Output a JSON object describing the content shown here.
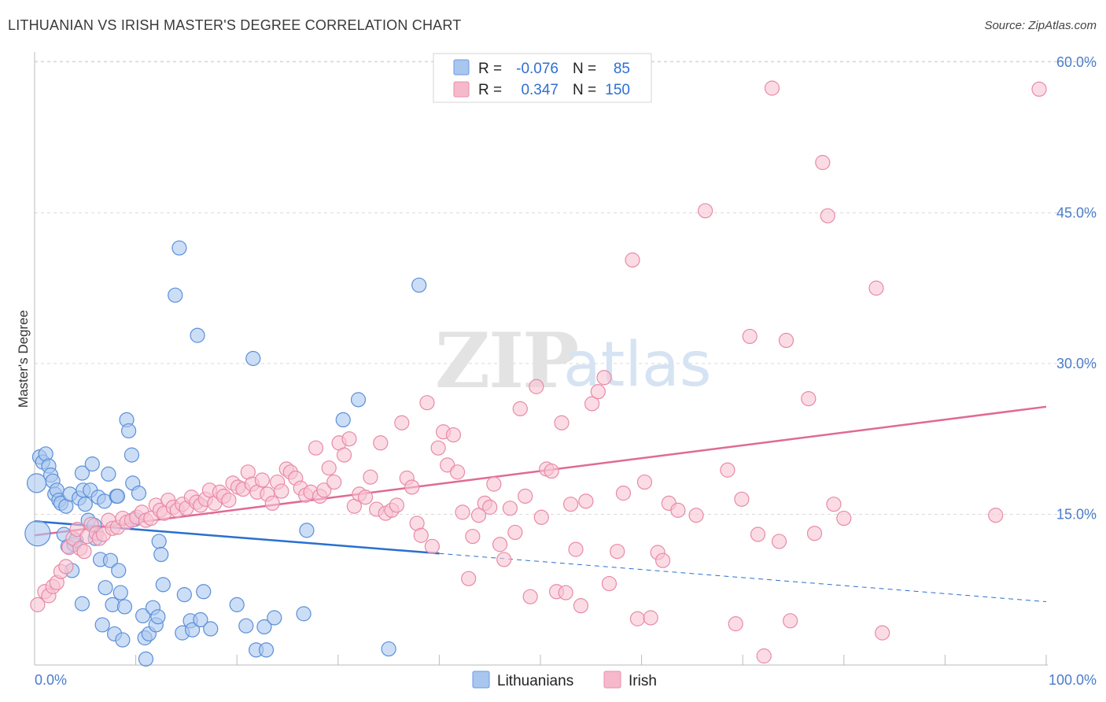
{
  "header": {
    "title": "LITHUANIAN VS IRISH MASTER'S DEGREE CORRELATION CHART",
    "source": "Source: ZipAtlas.com"
  },
  "watermark": {
    "zip": "ZIP",
    "atlas": "atlas"
  },
  "legend": {
    "rows": [
      {
        "r_label": "R =",
        "r_value": "-0.076",
        "n_label": "N =",
        "n_value": "85",
        "color": "#a8c6ee"
      },
      {
        "r_label": "R =",
        "r_value": "0.347",
        "n_label": "N =",
        "n_value": "150",
        "color": "#f6b8cb"
      }
    ]
  },
  "chart_data": {
    "type": "scatter",
    "title": "LITHUANIAN VS IRISH MASTER'S DEGREE CORRELATION CHART",
    "xlabel": "",
    "ylabel": "Master's Degree",
    "xlim": [
      0,
      100
    ],
    "ylim": [
      0,
      63
    ],
    "x_tick_labels": [
      "0.0%",
      "100.0%"
    ],
    "y_ticks": [
      15,
      30,
      45,
      60
    ],
    "y_tick_labels": [
      "15.0%",
      "30.0%",
      "45.0%",
      "60.0%"
    ],
    "grid": true,
    "legend_position": "bottom-center",
    "series": [
      {
        "name": "Lithuanians",
        "color": "#5b8fd8",
        "fill": "#aac8f0",
        "trend": {
          "x": [
            0,
            40
          ],
          "y": [
            14.3,
            11.1
          ],
          "dashed_to": [
            100,
            6.3
          ],
          "color": "#2a6fcf"
        },
        "points": [
          [
            0.2,
            18.1
          ],
          [
            0.3,
            13.1
          ],
          [
            0.5,
            20.7
          ],
          [
            0.8,
            20.2
          ],
          [
            1.1,
            21.0
          ],
          [
            1.4,
            19.8
          ],
          [
            1.6,
            18.9
          ],
          [
            1.8,
            18.3
          ],
          [
            2.0,
            17.0
          ],
          [
            2.2,
            17.4
          ],
          [
            2.4,
            16.4
          ],
          [
            2.6,
            16.1
          ],
          [
            2.9,
            13.0
          ],
          [
            3.1,
            15.8
          ],
          [
            3.3,
            11.8
          ],
          [
            3.5,
            17.0
          ],
          [
            3.7,
            9.4
          ],
          [
            3.9,
            12.0
          ],
          [
            4.1,
            12.4
          ],
          [
            4.4,
            16.6
          ],
          [
            4.7,
            19.1
          ],
          [
            4.8,
            17.4
          ],
          [
            4.7,
            6.1
          ],
          [
            5.0,
            16.0
          ],
          [
            5.3,
            14.4
          ],
          [
            5.5,
            17.4
          ],
          [
            5.7,
            20.0
          ],
          [
            5.9,
            13.9
          ],
          [
            6.0,
            12.6
          ],
          [
            6.3,
            16.7
          ],
          [
            6.5,
            10.5
          ],
          [
            6.7,
            4.0
          ],
          [
            6.9,
            16.3
          ],
          [
            7.0,
            7.7
          ],
          [
            7.3,
            19.0
          ],
          [
            7.5,
            10.4
          ],
          [
            7.7,
            6.0
          ],
          [
            7.9,
            3.1
          ],
          [
            8.1,
            16.8
          ],
          [
            8.2,
            16.8
          ],
          [
            8.3,
            9.4
          ],
          [
            8.5,
            7.2
          ],
          [
            8.7,
            2.5
          ],
          [
            8.9,
            5.8
          ],
          [
            9.1,
            24.4
          ],
          [
            9.3,
            23.3
          ],
          [
            9.6,
            20.9
          ],
          [
            9.7,
            18.1
          ],
          [
            9.9,
            14.5
          ],
          [
            10.3,
            17.1
          ],
          [
            10.7,
            4.9
          ],
          [
            10.9,
            2.7
          ],
          [
            11.0,
            0.6
          ],
          [
            11.3,
            3.1
          ],
          [
            11.7,
            5.7
          ],
          [
            12.0,
            4.0
          ],
          [
            12.2,
            4.8
          ],
          [
            12.3,
            12.3
          ],
          [
            12.5,
            11.0
          ],
          [
            12.7,
            8.0
          ],
          [
            13.9,
            36.8
          ],
          [
            14.3,
            41.5
          ],
          [
            14.6,
            3.2
          ],
          [
            14.8,
            7.0
          ],
          [
            15.4,
            4.4
          ],
          [
            15.6,
            3.5
          ],
          [
            16.1,
            32.8
          ],
          [
            16.4,
            4.5
          ],
          [
            16.7,
            7.3
          ],
          [
            17.4,
            3.6
          ],
          [
            20.0,
            6.0
          ],
          [
            20.9,
            3.9
          ],
          [
            21.6,
            30.5
          ],
          [
            21.9,
            1.5
          ],
          [
            22.7,
            3.8
          ],
          [
            22.9,
            1.5
          ],
          [
            23.7,
            4.7
          ],
          [
            26.6,
            5.1
          ],
          [
            26.9,
            13.4
          ],
          [
            30.5,
            24.4
          ],
          [
            32.0,
            26.4
          ],
          [
            35.0,
            1.6
          ],
          [
            38.0,
            37.8
          ]
        ]
      },
      {
        "name": "Irish",
        "color": "#e88aa8",
        "fill": "#f8c4d4",
        "trend": {
          "x": [
            0,
            100
          ],
          "y": [
            12.9,
            25.7
          ],
          "color": "#e06a96"
        },
        "points": [
          [
            0.3,
            6.0
          ],
          [
            1.0,
            7.3
          ],
          [
            1.4,
            6.9
          ],
          [
            1.8,
            7.8
          ],
          [
            2.2,
            8.2
          ],
          [
            2.6,
            9.3
          ],
          [
            3.1,
            9.8
          ],
          [
            3.4,
            11.7
          ],
          [
            3.8,
            12.6
          ],
          [
            4.2,
            13.5
          ],
          [
            4.5,
            11.6
          ],
          [
            4.9,
            11.3
          ],
          [
            5.2,
            12.8
          ],
          [
            5.6,
            14.0
          ],
          [
            6.1,
            13.1
          ],
          [
            6.4,
            12.6
          ],
          [
            6.8,
            13.0
          ],
          [
            7.3,
            14.4
          ],
          [
            7.7,
            13.6
          ],
          [
            8.2,
            13.7
          ],
          [
            8.7,
            14.6
          ],
          [
            9.1,
            14.2
          ],
          [
            9.6,
            14.4
          ],
          [
            10.1,
            14.7
          ],
          [
            10.6,
            15.2
          ],
          [
            11.0,
            14.4
          ],
          [
            11.5,
            14.6
          ],
          [
            12.0,
            15.9
          ],
          [
            12.4,
            15.4
          ],
          [
            12.8,
            15.1
          ],
          [
            13.2,
            16.4
          ],
          [
            13.7,
            15.7
          ],
          [
            14.1,
            15.4
          ],
          [
            14.6,
            16.0
          ],
          [
            15.0,
            15.6
          ],
          [
            15.5,
            16.7
          ],
          [
            16.0,
            16.2
          ],
          [
            16.4,
            15.9
          ],
          [
            16.9,
            16.5
          ],
          [
            17.3,
            17.4
          ],
          [
            17.8,
            16.1
          ],
          [
            18.3,
            17.2
          ],
          [
            18.7,
            16.8
          ],
          [
            19.2,
            16.4
          ],
          [
            19.6,
            18.1
          ],
          [
            20.1,
            17.7
          ],
          [
            20.6,
            17.5
          ],
          [
            21.1,
            19.2
          ],
          [
            21.5,
            18.0
          ],
          [
            22.0,
            17.2
          ],
          [
            22.5,
            18.4
          ],
          [
            23.0,
            17.0
          ],
          [
            23.5,
            16.1
          ],
          [
            24.0,
            18.2
          ],
          [
            24.4,
            17.3
          ],
          [
            24.9,
            19.5
          ],
          [
            25.3,
            19.2
          ],
          [
            25.8,
            18.6
          ],
          [
            26.3,
            17.6
          ],
          [
            26.8,
            16.9
          ],
          [
            27.3,
            17.2
          ],
          [
            27.8,
            21.6
          ],
          [
            28.2,
            16.8
          ],
          [
            28.6,
            17.4
          ],
          [
            29.1,
            19.6
          ],
          [
            29.6,
            18.2
          ],
          [
            30.1,
            22.1
          ],
          [
            30.6,
            20.9
          ],
          [
            31.1,
            22.5
          ],
          [
            31.6,
            15.8
          ],
          [
            32.1,
            17.0
          ],
          [
            32.7,
            16.7
          ],
          [
            33.2,
            18.7
          ],
          [
            33.8,
            15.5
          ],
          [
            34.2,
            22.1
          ],
          [
            34.7,
            15.1
          ],
          [
            35.3,
            15.4
          ],
          [
            35.8,
            15.9
          ],
          [
            36.3,
            24.1
          ],
          [
            36.8,
            18.6
          ],
          [
            37.3,
            17.7
          ],
          [
            37.8,
            14.1
          ],
          [
            38.2,
            12.9
          ],
          [
            38.8,
            26.1
          ],
          [
            39.3,
            11.8
          ],
          [
            39.9,
            21.6
          ],
          [
            40.4,
            23.2
          ],
          [
            40.8,
            19.9
          ],
          [
            41.4,
            22.9
          ],
          [
            41.8,
            19.2
          ],
          [
            42.3,
            15.2
          ],
          [
            42.9,
            8.6
          ],
          [
            43.3,
            12.8
          ],
          [
            43.9,
            14.9
          ],
          [
            44.5,
            16.1
          ],
          [
            45.0,
            15.7
          ],
          [
            45.4,
            18.0
          ],
          [
            46.0,
            12.0
          ],
          [
            46.4,
            10.5
          ],
          [
            47.0,
            15.6
          ],
          [
            47.5,
            13.2
          ],
          [
            48.0,
            25.5
          ],
          [
            48.5,
            16.8
          ],
          [
            49.0,
            6.8
          ],
          [
            49.6,
            27.7
          ],
          [
            50.1,
            14.7
          ],
          [
            50.6,
            19.5
          ],
          [
            51.1,
            19.3
          ],
          [
            51.6,
            7.3
          ],
          [
            52.1,
            24.1
          ],
          [
            52.5,
            7.2
          ],
          [
            53.0,
            16.0
          ],
          [
            53.5,
            11.5
          ],
          [
            54.0,
            5.9
          ],
          [
            54.5,
            16.3
          ],
          [
            55.1,
            26.0
          ],
          [
            55.7,
            27.2
          ],
          [
            56.3,
            28.6
          ],
          [
            56.8,
            8.1
          ],
          [
            57.6,
            11.3
          ],
          [
            58.2,
            17.1
          ],
          [
            59.1,
            40.3
          ],
          [
            59.6,
            4.6
          ],
          [
            60.3,
            18.2
          ],
          [
            60.9,
            4.7
          ],
          [
            61.6,
            11.2
          ],
          [
            62.1,
            10.4
          ],
          [
            62.7,
            16.1
          ],
          [
            63.6,
            15.4
          ],
          [
            65.4,
            14.9
          ],
          [
            66.3,
            45.2
          ],
          [
            68.5,
            19.4
          ],
          [
            69.3,
            4.1
          ],
          [
            69.9,
            16.5
          ],
          [
            70.7,
            32.7
          ],
          [
            71.5,
            13.0
          ],
          [
            72.1,
            0.9
          ],
          [
            72.9,
            57.4
          ],
          [
            73.6,
            12.3
          ],
          [
            74.3,
            32.3
          ],
          [
            74.7,
            4.4
          ],
          [
            76.5,
            26.5
          ],
          [
            77.1,
            13.1
          ],
          [
            77.9,
            50.0
          ],
          [
            78.4,
            44.7
          ],
          [
            79.0,
            16.0
          ],
          [
            80.0,
            14.6
          ],
          [
            83.2,
            37.5
          ],
          [
            83.8,
            3.2
          ],
          [
            95.0,
            14.9
          ],
          [
            99.3,
            57.3
          ]
        ]
      }
    ]
  }
}
